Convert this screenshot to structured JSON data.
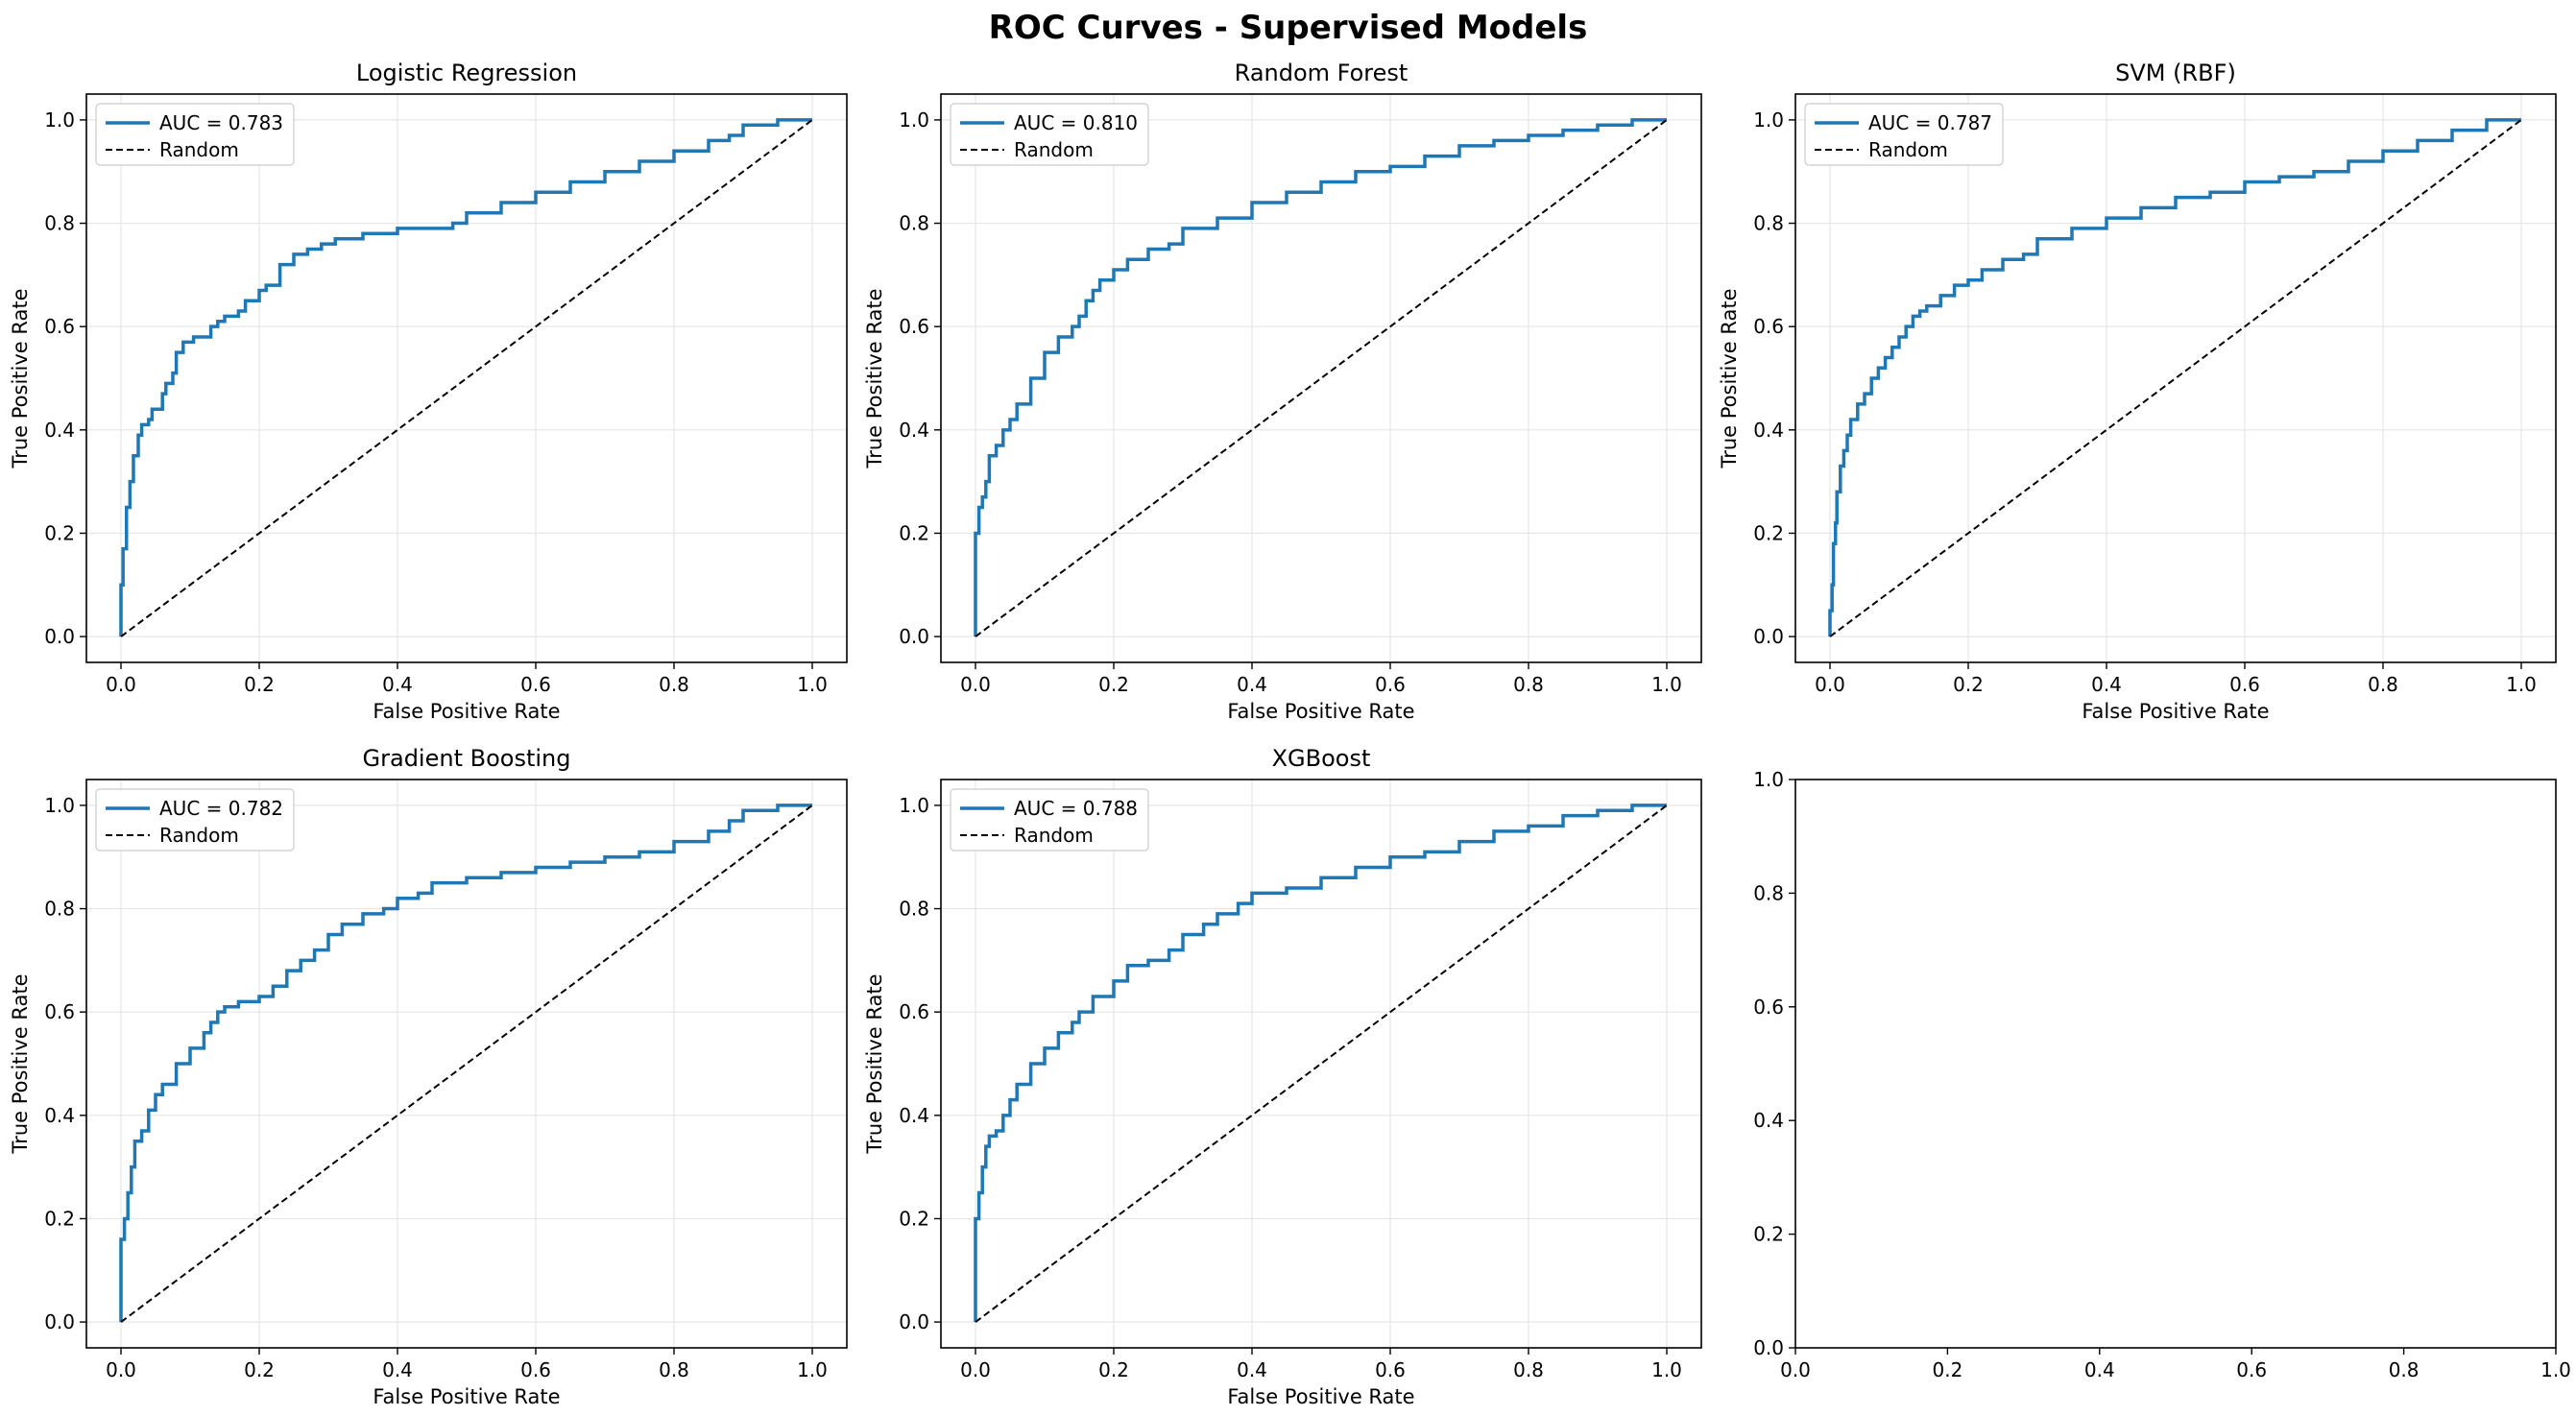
{
  "figure": {
    "title": "ROC Curves - Supervised Models"
  },
  "colors": {
    "roc": "#1f77b4",
    "random": "#000000",
    "grid": "#e6e6e6",
    "legend_border": "#cccccc"
  },
  "chart_data": [
    {
      "type": "line",
      "title": "Logistic Regression",
      "xlabel": "False Positive Rate",
      "ylabel": "True Positive Rate",
      "xlim": [
        -0.05,
        1.05
      ],
      "ylim": [
        -0.05,
        1.05
      ],
      "xticks": [
        "0.0",
        "0.2",
        "0.4",
        "0.6",
        "0.8",
        "1.0"
      ],
      "yticks": [
        "0.0",
        "0.2",
        "0.4",
        "0.6",
        "0.8",
        "1.0"
      ],
      "grid": true,
      "legend_placement": "upper left",
      "series": [
        {
          "name": "AUC = 0.783",
          "style": "solid",
          "x": [
            0.0,
            0.0,
            0.003,
            0.003,
            0.008,
            0.008,
            0.013,
            0.013,
            0.018,
            0.025,
            0.03,
            0.04,
            0.045,
            0.06,
            0.065,
            0.075,
            0.08,
            0.09,
            0.1,
            0.105,
            0.11,
            0.13,
            0.14,
            0.15,
            0.155,
            0.17,
            0.18,
            0.2,
            0.21,
            0.23,
            0.25,
            0.27,
            0.29,
            0.31,
            0.35,
            0.4,
            0.45,
            0.48,
            0.5,
            0.55,
            0.6,
            0.65,
            0.7,
            0.75,
            0.8,
            0.85,
            0.88,
            0.9,
            0.95,
            1.0
          ],
          "y": [
            0.0,
            0.1,
            0.1,
            0.17,
            0.17,
            0.25,
            0.25,
            0.28,
            0.3,
            0.35,
            0.39,
            0.41,
            0.42,
            0.44,
            0.47,
            0.49,
            0.51,
            0.55,
            0.57,
            0.57,
            0.58,
            0.58,
            0.6,
            0.61,
            0.62,
            0.62,
            0.63,
            0.65,
            0.67,
            0.68,
            0.72,
            0.74,
            0.75,
            0.76,
            0.77,
            0.78,
            0.79,
            0.79,
            0.8,
            0.82,
            0.84,
            0.86,
            0.88,
            0.9,
            0.92,
            0.94,
            0.96,
            0.97,
            0.99,
            1.0
          ]
        },
        {
          "name": "Random",
          "style": "dashed",
          "x": [
            0,
            1
          ],
          "y": [
            0,
            1
          ]
        }
      ]
    },
    {
      "type": "line",
      "title": "Random Forest",
      "xlabel": "False Positive Rate",
      "ylabel": "True Positive Rate",
      "xlim": [
        -0.05,
        1.05
      ],
      "ylim": [
        -0.05,
        1.05
      ],
      "xticks": [
        "0.0",
        "0.2",
        "0.4",
        "0.6",
        "0.8",
        "1.0"
      ],
      "yticks": [
        "0.0",
        "0.2",
        "0.4",
        "0.6",
        "0.8",
        "1.0"
      ],
      "grid": true,
      "legend_placement": "upper left",
      "series": [
        {
          "name": "AUC = 0.810",
          "style": "solid",
          "x": [
            0.0,
            0.0,
            0.005,
            0.01,
            0.015,
            0.02,
            0.03,
            0.04,
            0.05,
            0.06,
            0.08,
            0.1,
            0.12,
            0.14,
            0.15,
            0.16,
            0.17,
            0.18,
            0.2,
            0.22,
            0.25,
            0.28,
            0.3,
            0.35,
            0.4,
            0.45,
            0.5,
            0.55,
            0.6,
            0.65,
            0.7,
            0.75,
            0.8,
            0.85,
            0.9,
            0.95,
            1.0
          ],
          "y": [
            0.0,
            0.15,
            0.2,
            0.25,
            0.27,
            0.3,
            0.35,
            0.37,
            0.4,
            0.42,
            0.45,
            0.5,
            0.55,
            0.58,
            0.6,
            0.62,
            0.65,
            0.67,
            0.69,
            0.71,
            0.73,
            0.75,
            0.76,
            0.79,
            0.81,
            0.84,
            0.86,
            0.88,
            0.9,
            0.91,
            0.93,
            0.95,
            0.96,
            0.97,
            0.98,
            0.99,
            1.0
          ]
        },
        {
          "name": "Random",
          "style": "dashed",
          "x": [
            0,
            1
          ],
          "y": [
            0,
            1
          ]
        }
      ]
    },
    {
      "type": "line",
      "title": "SVM (RBF)",
      "xlabel": "False Positive Rate",
      "ylabel": "True Positive Rate",
      "xlim": [
        -0.05,
        1.05
      ],
      "ylim": [
        -0.05,
        1.05
      ],
      "xticks": [
        "0.0",
        "0.2",
        "0.4",
        "0.6",
        "0.8",
        "1.0"
      ],
      "yticks": [
        "0.0",
        "0.2",
        "0.4",
        "0.6",
        "0.8",
        "1.0"
      ],
      "grid": true,
      "legend_placement": "upper left",
      "series": [
        {
          "name": "AUC = 0.787",
          "style": "solid",
          "x": [
            0.0,
            0.003,
            0.005,
            0.008,
            0.01,
            0.015,
            0.02,
            0.025,
            0.03,
            0.04,
            0.05,
            0.06,
            0.07,
            0.08,
            0.09,
            0.1,
            0.11,
            0.12,
            0.13,
            0.14,
            0.16,
            0.18,
            0.2,
            0.22,
            0.25,
            0.28,
            0.3,
            0.35,
            0.4,
            0.45,
            0.5,
            0.55,
            0.6,
            0.65,
            0.7,
            0.75,
            0.8,
            0.85,
            0.9,
            0.95,
            1.0
          ],
          "y": [
            0.0,
            0.05,
            0.1,
            0.18,
            0.22,
            0.28,
            0.33,
            0.36,
            0.39,
            0.42,
            0.45,
            0.47,
            0.5,
            0.52,
            0.54,
            0.56,
            0.58,
            0.6,
            0.62,
            0.63,
            0.64,
            0.66,
            0.68,
            0.69,
            0.71,
            0.73,
            0.74,
            0.77,
            0.79,
            0.81,
            0.83,
            0.85,
            0.86,
            0.88,
            0.89,
            0.9,
            0.92,
            0.94,
            0.96,
            0.98,
            1.0
          ]
        },
        {
          "name": "Random",
          "style": "dashed",
          "x": [
            0,
            1
          ],
          "y": [
            0,
            1
          ]
        }
      ]
    },
    {
      "type": "line",
      "title": "Gradient Boosting",
      "xlabel": "False Positive Rate",
      "ylabel": "True Positive Rate",
      "xlim": [
        -0.05,
        1.05
      ],
      "ylim": [
        -0.05,
        1.05
      ],
      "xticks": [
        "0.0",
        "0.2",
        "0.4",
        "0.6",
        "0.8",
        "1.0"
      ],
      "yticks": [
        "0.0",
        "0.2",
        "0.4",
        "0.6",
        "0.8",
        "1.0"
      ],
      "grid": true,
      "legend_placement": "upper left",
      "series": [
        {
          "name": "AUC = 0.782",
          "style": "solid",
          "x": [
            0.0,
            0.0,
            0.005,
            0.01,
            0.015,
            0.02,
            0.03,
            0.04,
            0.05,
            0.06,
            0.08,
            0.1,
            0.12,
            0.13,
            0.14,
            0.15,
            0.17,
            0.2,
            0.22,
            0.24,
            0.26,
            0.28,
            0.3,
            0.32,
            0.35,
            0.38,
            0.4,
            0.43,
            0.45,
            0.5,
            0.55,
            0.6,
            0.65,
            0.7,
            0.75,
            0.8,
            0.85,
            0.88,
            0.9,
            0.95,
            1.0
          ],
          "y": [
            0.0,
            0.1,
            0.16,
            0.2,
            0.25,
            0.3,
            0.35,
            0.37,
            0.41,
            0.44,
            0.46,
            0.5,
            0.53,
            0.56,
            0.58,
            0.6,
            0.61,
            0.62,
            0.63,
            0.65,
            0.68,
            0.7,
            0.72,
            0.75,
            0.77,
            0.79,
            0.8,
            0.82,
            0.83,
            0.85,
            0.86,
            0.87,
            0.88,
            0.89,
            0.9,
            0.91,
            0.93,
            0.95,
            0.97,
            0.99,
            1.0
          ]
        },
        {
          "name": "Random",
          "style": "dashed",
          "x": [
            0,
            1
          ],
          "y": [
            0,
            1
          ]
        }
      ]
    },
    {
      "type": "line",
      "title": "XGBoost",
      "xlabel": "False Positive Rate",
      "ylabel": "True Positive Rate",
      "xlim": [
        -0.05,
        1.05
      ],
      "ylim": [
        -0.05,
        1.05
      ],
      "xticks": [
        "0.0",
        "0.2",
        "0.4",
        "0.6",
        "0.8",
        "1.0"
      ],
      "yticks": [
        "0.0",
        "0.2",
        "0.4",
        "0.6",
        "0.8",
        "1.0"
      ],
      "grid": true,
      "legend_placement": "upper left",
      "series": [
        {
          "name": "AUC = 0.788",
          "style": "solid",
          "x": [
            0.0,
            0.0,
            0.005,
            0.01,
            0.015,
            0.02,
            0.03,
            0.04,
            0.05,
            0.06,
            0.08,
            0.1,
            0.12,
            0.14,
            0.15,
            0.17,
            0.2,
            0.22,
            0.25,
            0.28,
            0.3,
            0.33,
            0.35,
            0.38,
            0.4,
            0.45,
            0.5,
            0.55,
            0.6,
            0.65,
            0.7,
            0.75,
            0.8,
            0.85,
            0.9,
            0.95,
            1.0
          ],
          "y": [
            0.0,
            0.09,
            0.2,
            0.25,
            0.3,
            0.34,
            0.36,
            0.37,
            0.4,
            0.43,
            0.46,
            0.5,
            0.53,
            0.56,
            0.58,
            0.6,
            0.63,
            0.66,
            0.69,
            0.7,
            0.72,
            0.75,
            0.77,
            0.79,
            0.81,
            0.83,
            0.84,
            0.86,
            0.88,
            0.9,
            0.91,
            0.93,
            0.95,
            0.96,
            0.98,
            0.99,
            1.0
          ]
        },
        {
          "name": "Random",
          "style": "dashed",
          "x": [
            0,
            1
          ],
          "y": [
            0,
            1
          ]
        }
      ]
    },
    {
      "type": "line",
      "title": "",
      "xlabel": "",
      "ylabel": "",
      "xlim": [
        0,
        1
      ],
      "ylim": [
        0,
        1
      ],
      "xticks": [
        "0.0",
        "0.2",
        "0.4",
        "0.6",
        "0.8",
        "1.0"
      ],
      "yticks": [
        "0.0",
        "0.2",
        "0.4",
        "0.6",
        "0.8",
        "1.0"
      ],
      "grid": false,
      "series": []
    }
  ]
}
